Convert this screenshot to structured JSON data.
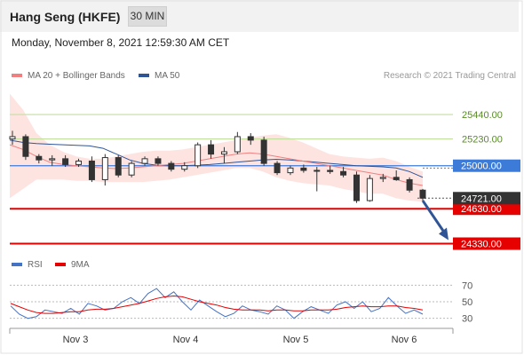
{
  "header": {
    "title": "Hang Seng (HKFE)",
    "timeframe_label": "30 MIN",
    "datetime": "Monday, November 8, 2021 12:59:30 AM CET"
  },
  "legend": {
    "ma20_label": "MA 20 + Bollinger Bands",
    "ma50_label": "MA 50",
    "credit": "Research © 2021 Trading Central",
    "rsi_label": "RSI",
    "ma9_label": "9MA"
  },
  "colors": {
    "ma20": "#f08080",
    "ma50": "#2f5597",
    "bollinger_fill": "#fde1de",
    "resistance_green": "#c3df9e",
    "pivot_blue": "#3d7bd9",
    "support_red": "#e60000",
    "current_bg": "#333333",
    "arrow": "#2f5597",
    "candle": "#333333",
    "rsi": "#4472c4",
    "rsi_ma": "#e60000"
  },
  "chart_data": [
    {
      "type": "candlestick",
      "title": "Hang Seng (HKFE)",
      "x_labels": [
        "Nov 3",
        "Nov 4",
        "Nov 5",
        "Nov 6"
      ],
      "ylim": [
        24250,
        25700
      ],
      "levels": [
        {
          "value": 25440,
          "label": "25440.00",
          "role": "resistance",
          "color": "#c3df9e",
          "tag": "text"
        },
        {
          "value": 25230,
          "label": "25230.00",
          "role": "resistance",
          "color": "#c3df9e",
          "tag": "text"
        },
        {
          "value": 25000,
          "label": "25000.00",
          "role": "pivot",
          "color": "#3d7bd9",
          "tag": "box"
        },
        {
          "value": 24630,
          "label": "24630.00",
          "role": "support",
          "color": "#e60000",
          "tag": "box"
        },
        {
          "value": 24330,
          "label": "24330.00",
          "role": "support",
          "color": "#e60000",
          "tag": "box"
        }
      ],
      "current_price": {
        "value": 24721,
        "label": "24721.00"
      },
      "ma20": [
        25180,
        25140,
        25080,
        25030,
        25010,
        25000,
        24990,
        24980,
        24975,
        24980,
        24990,
        25000,
        25010,
        25020,
        25040,
        25060,
        25080,
        25100,
        25110,
        25100,
        25080,
        25060,
        25040,
        25020,
        25000,
        24980,
        24960,
        24940,
        24920,
        24880,
        24850,
        24830
      ],
      "ma50": [
        25220,
        25200,
        25190,
        25185,
        25180,
        25175,
        25170,
        25150,
        25100,
        25050,
        25020,
        25005,
        25000,
        25000,
        25005,
        25010,
        25020,
        25030,
        25040,
        25050,
        25055,
        25050,
        25040,
        25030,
        25020,
        25010,
        25000,
        24995,
        24990,
        24980,
        24950,
        24900
      ],
      "bb_upper": [
        25620,
        25480,
        25280,
        25180,
        25120,
        25080,
        25060,
        25060,
        25080,
        25100,
        25120,
        25130,
        25130,
        25140,
        25160,
        25180,
        25200,
        25220,
        25240,
        25260,
        25270,
        25240,
        25200,
        25150,
        25100,
        25080,
        25070,
        25060,
        25070,
        25040,
        24990,
        24950
      ],
      "bb_lower": [
        24720,
        24800,
        24880,
        24880,
        24880,
        24870,
        24870,
        24860,
        24860,
        24860,
        24860,
        24870,
        24880,
        24900,
        24920,
        24940,
        24960,
        24980,
        24980,
        24950,
        24900,
        24870,
        24850,
        24840,
        24830,
        24800,
        24780,
        24760,
        24760,
        24720,
        24700,
        24690
      ],
      "candles": [
        {
          "o": 25230,
          "h": 25300,
          "l": 25180,
          "c": 25250
        },
        {
          "o": 25250,
          "h": 25270,
          "l": 25050,
          "c": 25080
        },
        {
          "o": 25080,
          "h": 25100,
          "l": 25020,
          "c": 25050
        },
        {
          "o": 25050,
          "h": 25090,
          "l": 25000,
          "c": 25060
        },
        {
          "o": 25060,
          "h": 25090,
          "l": 24990,
          "c": 25010
        },
        {
          "o": 25010,
          "h": 25060,
          "l": 24990,
          "c": 25040
        },
        {
          "o": 25040,
          "h": 25080,
          "l": 24860,
          "c": 24880
        },
        {
          "o": 24880,
          "h": 25100,
          "l": 24830,
          "c": 25070
        },
        {
          "o": 25070,
          "h": 25090,
          "l": 24900,
          "c": 24920
        },
        {
          "o": 24920,
          "h": 25040,
          "l": 24900,
          "c": 25020
        },
        {
          "o": 25020,
          "h": 25080,
          "l": 25000,
          "c": 25060
        },
        {
          "o": 25060,
          "h": 25080,
          "l": 25000,
          "c": 25020
        },
        {
          "o": 25020,
          "h": 25040,
          "l": 24950,
          "c": 24970
        },
        {
          "o": 24970,
          "h": 25030,
          "l": 24950,
          "c": 25000
        },
        {
          "o": 25000,
          "h": 25200,
          "l": 24980,
          "c": 25180
        },
        {
          "o": 25180,
          "h": 25220,
          "l": 25060,
          "c": 25100
        },
        {
          "o": 25100,
          "h": 25160,
          "l": 25020,
          "c": 25120
        },
        {
          "o": 25120,
          "h": 25290,
          "l": 25100,
          "c": 25250
        },
        {
          "o": 25250,
          "h": 25280,
          "l": 25180,
          "c": 25220
        },
        {
          "o": 25220,
          "h": 25250,
          "l": 25000,
          "c": 25020
        },
        {
          "o": 25020,
          "h": 25040,
          "l": 24920,
          "c": 24940
        },
        {
          "o": 24940,
          "h": 25000,
          "l": 24920,
          "c": 24980
        },
        {
          "o": 24980,
          "h": 25010,
          "l": 24940,
          "c": 24960
        },
        {
          "o": 24960,
          "h": 24990,
          "l": 24780,
          "c": 24960
        },
        {
          "o": 24960,
          "h": 25000,
          "l": 24930,
          "c": 24950
        },
        {
          "o": 24950,
          "h": 24990,
          "l": 24900,
          "c": 24920
        },
        {
          "o": 24920,
          "h": 24950,
          "l": 24680,
          "c": 24700
        },
        {
          "o": 24700,
          "h": 24920,
          "l": 24690,
          "c": 24890
        },
        {
          "o": 24890,
          "h": 24930,
          "l": 24860,
          "c": 24900
        },
        {
          "o": 24900,
          "h": 24960,
          "l": 24870,
          "c": 24880
        },
        {
          "o": 24880,
          "h": 24900,
          "l": 24770,
          "c": 24790
        },
        {
          "o": 24790,
          "h": 24800,
          "l": 24700,
          "c": 24721
        }
      ],
      "forecast_arrow": {
        "from": 24700,
        "to": 24330
      }
    },
    {
      "type": "line",
      "title": "RSI",
      "ylim": [
        20,
        80
      ],
      "yticks": [
        70,
        50,
        30
      ],
      "series": [
        {
          "name": "RSI",
          "color": "#4472c4",
          "values": [
            45,
            35,
            30,
            32,
            40,
            38,
            36,
            42,
            35,
            48,
            45,
            40,
            42,
            50,
            55,
            48,
            60,
            66,
            55,
            62,
            50,
            40,
            52,
            45,
            38,
            32,
            36,
            45,
            40,
            38,
            35,
            45,
            40,
            30,
            38,
            44,
            40,
            36,
            46,
            50,
            42,
            50,
            38,
            42,
            55,
            45,
            36,
            40,
            35
          ]
        },
        {
          "name": "9MA",
          "color": "#e60000",
          "values": [
            48,
            44,
            40,
            37,
            36,
            36,
            37,
            38,
            38,
            40,
            41,
            41,
            42,
            44,
            46,
            48,
            51,
            54,
            56,
            57,
            56,
            53,
            50,
            48,
            46,
            43,
            41,
            40,
            40,
            40,
            39,
            40,
            40,
            39,
            39,
            40,
            40,
            40,
            41,
            43,
            44,
            45,
            44,
            44,
            45,
            45,
            43,
            42,
            40
          ]
        }
      ]
    }
  ]
}
